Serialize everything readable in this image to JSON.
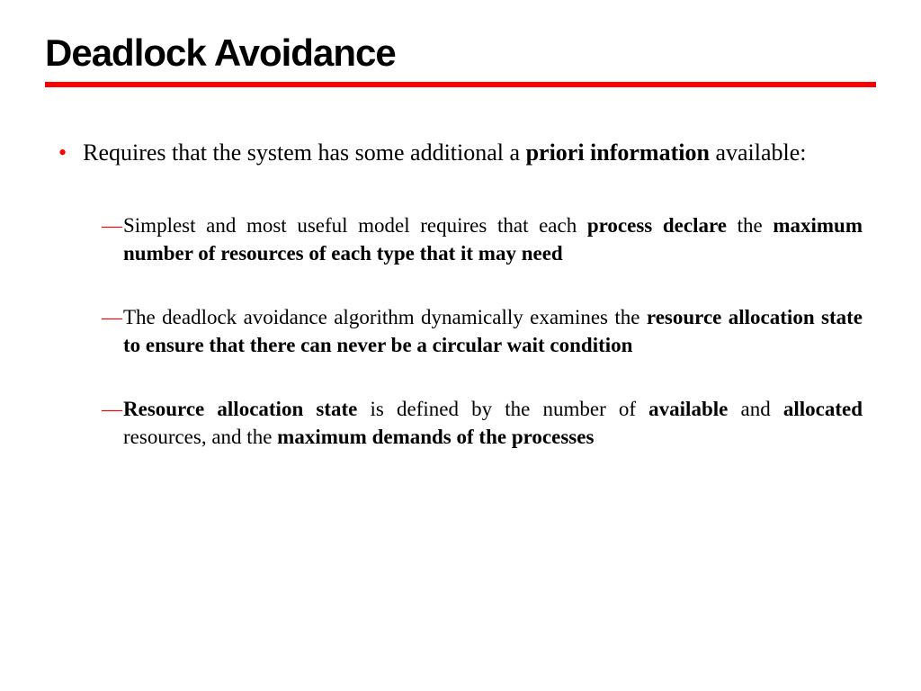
{
  "slide": {
    "title": "Deadlock Avoidance",
    "title_font_family": "Arial",
    "title_font_weight": 900,
    "title_font_size": 42,
    "title_color": "#000000",
    "underline_color": "#ff0000",
    "underline_height": 6,
    "background_color": "#ffffff",
    "body_font_family": "Times New Roman",
    "bullet1_color": "#ff0000",
    "bullet2_color": "#ff0000",
    "bullet1_fontsize": 26,
    "bullet2_fontsize": 23,
    "bullets": {
      "main": {
        "prefix": "Requires that the system has some additional a ",
        "bold1": "priori information",
        "suffix": " available:"
      },
      "sub1": {
        "prefix": "Simplest and most useful model requires that each ",
        "bold1": "process declare",
        "mid1": " the ",
        "bold2": "maximum number of resources of each type that it may need"
      },
      "sub2": {
        "prefix": "The deadlock avoidance algorithm dynamically examines the ",
        "bold1": "resource allocation state to ensure that there can never be a circular wait condition"
      },
      "sub3": {
        "bold1": "Resource allocation state",
        "mid1": " is defined by the number of ",
        "bold2": "available",
        "mid2": " and ",
        "bold3": "allocated",
        "mid3": " resources, and the ",
        "bold4": "maximum demands of the processes"
      }
    }
  }
}
